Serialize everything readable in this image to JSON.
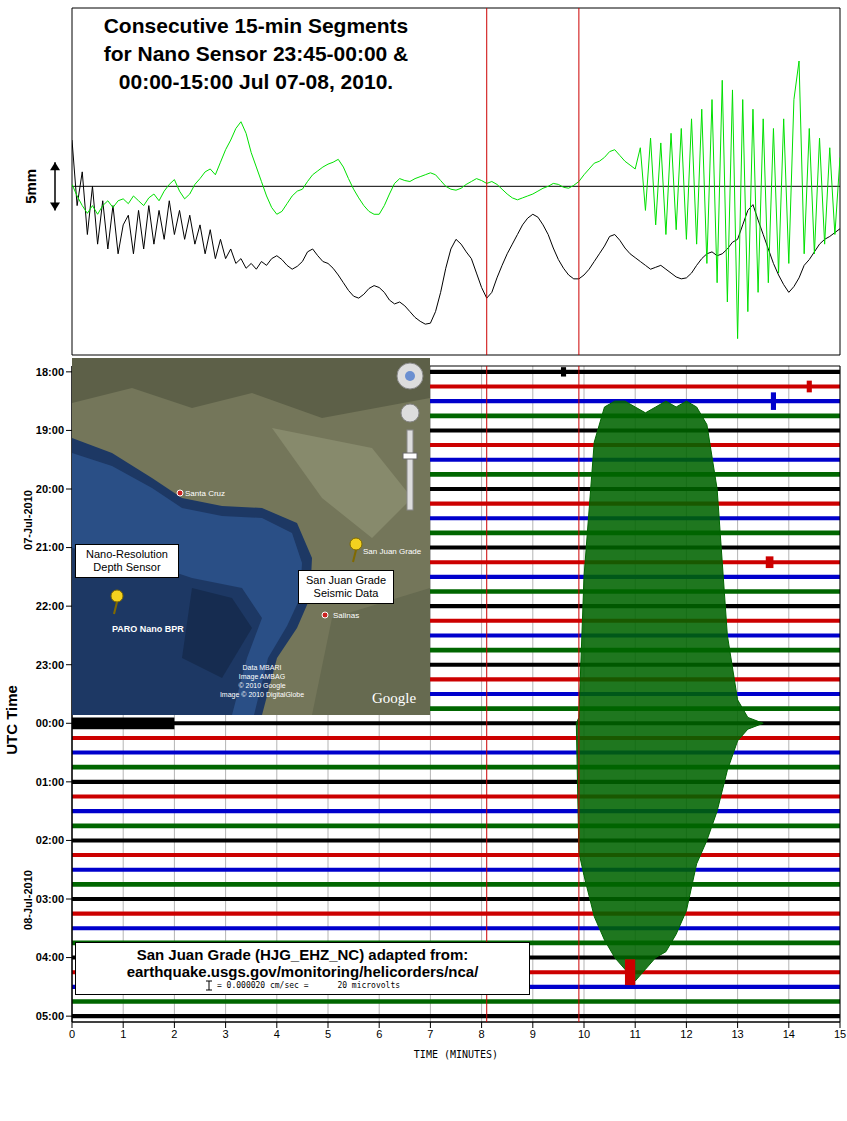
{
  "chart_data": [
    {
      "type": "line",
      "title": [
        "Consecutive 15-min Segments",
        "for Nano Sensor 23:45-00:00 &",
        "00:00-15:00 Jul 07-08, 2010."
      ],
      "x": [
        0,
        0.1,
        0.2,
        0.3,
        0.4,
        0.5,
        0.6,
        0.7,
        0.8,
        0.9,
        1,
        1.1,
        1.2,
        1.3,
        1.4,
        1.5,
        1.6,
        1.7,
        1.8,
        1.9,
        2,
        2.1,
        2.2,
        2.3,
        2.4,
        2.5,
        2.6,
        2.7,
        2.8,
        2.9,
        3,
        3.1,
        3.2,
        3.3,
        3.4,
        3.5,
        3.6,
        3.7,
        3.8,
        3.9,
        4,
        4.1,
        4.2,
        4.3,
        4.4,
        4.5,
        4.6,
        4.7,
        4.8,
        4.9,
        5,
        5.1,
        5.2,
        5.3,
        5.4,
        5.5,
        5.6,
        5.7,
        5.8,
        5.9,
        6,
        6.1,
        6.2,
        6.3,
        6.4,
        6.5,
        6.6,
        6.7,
        6.8,
        6.9,
        7,
        7.1,
        7.2,
        7.3,
        7.4,
        7.5,
        7.6,
        7.7,
        7.8,
        7.9,
        8,
        8.1,
        8.2,
        8.3,
        8.4,
        8.5,
        8.6,
        8.7,
        8.8,
        8.9,
        9,
        9.1,
        9.2,
        9.3,
        9.4,
        9.5,
        9.6,
        9.7,
        9.8,
        9.9,
        10,
        10.1,
        10.2,
        10.3,
        10.4,
        10.5,
        10.6,
        10.7,
        10.8,
        10.9,
        11,
        11.1,
        11.2,
        11.3,
        11.4,
        11.5,
        11.6,
        11.7,
        11.8,
        11.9,
        12,
        12.1,
        12.2,
        12.3,
        12.4,
        12.5,
        12.6,
        12.7,
        12.8,
        12.9,
        13,
        13.1,
        13.2,
        13.3,
        13.4,
        13.5,
        13.6,
        13.7,
        13.8,
        13.9,
        14,
        14.1,
        14.2,
        14.3,
        14.4,
        14.5,
        14.6,
        14.7,
        14.8,
        14.9,
        15
      ],
      "series": [
        {
          "color": "#00e000",
          "values": [
            0.2,
            -1,
            -2,
            -2.8,
            -2,
            -2.9,
            -2,
            -1.5,
            -2.2,
            -1.5,
            -1.3,
            -1.8,
            -1,
            -1.5,
            -2,
            -1.2,
            -0.8,
            -1.5,
            -0.5,
            0.2,
            0.7,
            -0.5,
            -1.3,
            -0.8,
            0.2,
            0.8,
            1.5,
            1.8,
            1.2,
            2.5,
            3.8,
            4.8,
            6,
            6.7,
            5.5,
            3.5,
            2,
            0.5,
            -1,
            -2.2,
            -2.9,
            -2.6,
            -1.8,
            -1,
            -0.5,
            -0.3,
            0.5,
            1.2,
            1.6,
            2,
            2.3,
            2.5,
            2.8,
            2,
            0.8,
            -0.3,
            -1.2,
            -2,
            -2.6,
            -2.9,
            -2.9,
            -2,
            -0.8,
            0.3,
            0.8,
            0.6,
            0.5,
            0.8,
            1,
            1.2,
            1.4,
            1.2,
            0.6,
            0,
            -0.3,
            -0.4,
            -0.2,
            0.2,
            0.5,
            0.8,
            0.6,
            0.3,
            0.5,
            0.2,
            -0.3,
            -0.8,
            -1.2,
            -1.4,
            -1.2,
            -1,
            -0.8,
            -0.5,
            -0.2,
            0,
            0.3,
            0.2,
            -0.1,
            -0.2,
            0.1,
            0.5,
            1.2,
            1.8,
            2.4,
            2.6,
            3,
            3.6,
            3.8,
            3.2,
            2.6,
            2.2,
            1.8,
            4,
            -2.5,
            5,
            -4,
            4.5,
            -5,
            5.5,
            -4.5,
            6,
            -5.5,
            7,
            -6,
            8,
            -8,
            9,
            -10,
            11,
            -12,
            10,
            -15.8,
            9,
            -13,
            8,
            -11,
            7,
            -10,
            6,
            -9,
            7,
            -8,
            9,
            13,
            -7,
            6,
            -7,
            5,
            -6,
            4,
            -5,
            3
          ]
        },
        {
          "color": "#000000",
          "values": [
            4.8,
            -2,
            1.5,
            -5,
            0,
            -6,
            -1.5,
            -6.5,
            -2,
            -7,
            -4,
            -3,
            -7,
            -2.5,
            -6.5,
            -2,
            -6,
            -2.5,
            -5.5,
            -1.5,
            -5,
            -2.5,
            -5.5,
            -3,
            -6,
            -4,
            -7,
            -4.5,
            -7.5,
            -5.5,
            -7.5,
            -6.5,
            -8,
            -7.5,
            -8.5,
            -8,
            -8.6,
            -7.8,
            -8.2,
            -7.5,
            -7.2,
            -7.6,
            -8.2,
            -8.6,
            -8.3,
            -7.8,
            -6.8,
            -6.5,
            -7.2,
            -7.8,
            -8,
            -8.5,
            -9.2,
            -10,
            -10.8,
            -11.4,
            -11.6,
            -11.2,
            -10.6,
            -10.3,
            -10.5,
            -11,
            -11.8,
            -12.2,
            -12,
            -12.4,
            -13,
            -13.6,
            -14,
            -14.3,
            -14.2,
            -13,
            -11,
            -8.5,
            -6.5,
            -5.5,
            -6,
            -6.8,
            -7.5,
            -9,
            -10.5,
            -11.6,
            -11,
            -9.5,
            -8.2,
            -7,
            -6,
            -5,
            -4,
            -3.3,
            -2.9,
            -3.2,
            -4,
            -5,
            -6.4,
            -7.6,
            -8.5,
            -9.2,
            -9.6,
            -9.6,
            -9.2,
            -8.6,
            -7.8,
            -7,
            -6.2,
            -5.2,
            -5,
            -5.6,
            -6.4,
            -7,
            -7.4,
            -7.8,
            -8.2,
            -8.6,
            -8.4,
            -8.2,
            -8.6,
            -9,
            -9.4,
            -9.6,
            -9.5,
            -9,
            -8.2,
            -7.5,
            -7,
            -6.8,
            -7.2,
            -7,
            -6.5,
            -5.8,
            -5.5,
            -4,
            -2.5,
            -1.9,
            -3.5,
            -5,
            -6.5,
            -8,
            -9.2,
            -10.2,
            -11,
            -10.4,
            -9.5,
            -8.2,
            -7.6,
            -6.8,
            -6,
            -5.5,
            -5.2,
            -4.8,
            -4.4
          ]
        }
      ],
      "xlim": [
        0,
        15
      ],
      "ylim": [
        -17.5,
        18.5
      ],
      "tick_labels": false,
      "baseline": 0,
      "scale_bar": {
        "label": "5mm",
        "value": 5
      }
    },
    {
      "type": "helicorder",
      "x_label": "TIME (MINUTES)",
      "y_label": "UTC Time",
      "date_labels": [
        "07-Jul-2010",
        "08-Jul-2010"
      ],
      "xlim": [
        0,
        15
      ],
      "xticks": [
        0,
        1,
        2,
        3,
        4,
        5,
        6,
        7,
        8,
        9,
        10,
        11,
        12,
        13,
        14,
        15
      ],
      "ylim": [
        -0.1,
        11.1
      ],
      "yticks": [
        {
          "value": 0,
          "label": "18:00"
        },
        {
          "value": 1,
          "label": "19:00"
        },
        {
          "value": 2,
          "label": "20:00"
        },
        {
          "value": 3,
          "label": "21:00"
        },
        {
          "value": 4,
          "label": "22:00"
        },
        {
          "value": 5,
          "label": "23:00"
        },
        {
          "value": 6,
          "label": "00:00"
        },
        {
          "value": 7,
          "label": "01:00"
        },
        {
          "value": 8,
          "label": "02:00"
        },
        {
          "value": 9,
          "label": "03:00"
        },
        {
          "value": 10,
          "label": "04:00"
        },
        {
          "value": 11,
          "label": "05:00"
        }
      ],
      "grid": true,
      "rows": {
        "y": [
          0,
          0.25,
          0.5,
          0.75,
          1,
          1.25,
          1.5,
          1.75,
          2,
          2.25,
          2.5,
          2.75,
          3,
          3.25,
          3.5,
          3.75,
          4,
          4.25,
          4.5,
          4.75,
          5,
          5.25,
          5.5,
          5.75,
          6,
          6.25,
          6.5,
          6.75,
          7,
          7.25,
          7.5,
          7.75,
          8,
          8.25,
          8.5,
          8.75,
          9,
          9.25,
          9.5,
          9.75,
          10,
          10.25,
          10.5,
          10.75,
          11
        ],
        "colors": [
          "#000000",
          "#cc0000",
          "#0000cc",
          "#006600",
          "#000000",
          "#cc0000",
          "#0000cc",
          "#006600",
          "#000000",
          "#cc0000",
          "#0000cc",
          "#006600",
          "#000000",
          "#cc0000",
          "#0000cc",
          "#006600",
          "#000000",
          "#cc0000",
          "#0000cc",
          "#006600",
          "#000000",
          "#cc0000",
          "#0000cc",
          "#006600",
          "#000000",
          "#cc0000",
          "#0000cc",
          "#006600",
          "#000000",
          "#cc0000",
          "#0000cc",
          "#006600",
          "#000000",
          "#cc0000",
          "#0000cc",
          "#006600",
          "#000000",
          "#cc0000",
          "#0000cc",
          "#006600",
          "#000000",
          "#cc0000",
          "#0000cc",
          "#006600",
          "#000000"
        ],
        "amplitude": [
          0.035,
          0.035,
          0.035,
          0.04,
          0.035,
          0.035,
          0.035,
          0.04,
          0.035,
          0.035,
          0.035,
          0.04,
          0.035,
          0.035,
          0.035,
          0.04,
          0.035,
          0.035,
          0.035,
          0.04,
          0.035,
          0.035,
          0.035,
          0.04,
          0.035,
          0.035,
          0.035,
          0.04,
          0.035,
          0.035,
          0.035,
          0.04,
          0.035,
          0.035,
          0.035,
          0.04,
          0.035,
          0.035,
          0.035,
          0.04,
          0.035,
          0.035,
          0.035,
          0.04,
          0.035
        ]
      },
      "events": {
        "y": [
          6,
          0,
          0.25,
          0.5,
          3.25,
          10.25
        ],
        "x_start": [
          0,
          9.55,
          14.35,
          13.65,
          13.55,
          10.8
        ],
        "x_end": [
          2,
          9.65,
          14.45,
          13.75,
          13.7,
          11
        ],
        "amplitude": [
          0.1,
          0.08,
          0.1,
          0.15,
          0.1,
          0.22
        ],
        "colors": [
          "#000000",
          "#000000",
          "#cc0000",
          "#0000cc",
          "#cc0000",
          "#cc0000"
        ]
      },
      "burst": {
        "color": "#006400",
        "x": [
          9.85,
          9.9,
          10,
          10.2,
          10.4,
          10.6,
          10.8,
          11,
          11.2,
          11.4,
          11.6,
          11.8,
          12,
          12.2,
          12.4,
          12.6,
          12.8,
          13,
          13.2,
          13.5
        ],
        "low": [
          6,
          5.9,
          3.5,
          1.2,
          0.6,
          0.5,
          0.5,
          0.6,
          0.7,
          0.6,
          0.5,
          0.6,
          0.5,
          0.6,
          0.9,
          2,
          4.5,
          5.6,
          5.9,
          6
        ],
        "high": [
          6,
          8.2,
          8.6,
          9.3,
          9.7,
          10,
          10.2,
          10.4,
          10.2,
          10,
          9.9,
          9.6,
          9.2,
          8.4,
          8,
          7.5,
          6.8,
          6.3,
          6.1,
          6
        ]
      },
      "annotation": {
        "lines": [
          "San Juan Grade (HJG_EHZ_NC) adapted from:",
          "earthquake.usgs.gov/monitoring/helicorders/nca/"
        ],
        "scale_label": "= 0.000020 cm/sec =      20 microvolts"
      }
    }
  ],
  "markers": {
    "x": [
      8.1,
      9.9
    ],
    "color": "#cc0000"
  },
  "inset_map": {
    "boxes": [
      "Nano-Resolution Depth Sensor",
      "San Juan Grade Seismic Data"
    ],
    "places": [
      "Santa Cruz",
      "San Juan Grade",
      "Salinas",
      "PARO Nano BPR"
    ],
    "credits": [
      "Data MBARI",
      "Image AMBAG",
      "© 2010 Google",
      "Image © 2010 DigitalGlobe"
    ],
    "logo": "Google"
  }
}
